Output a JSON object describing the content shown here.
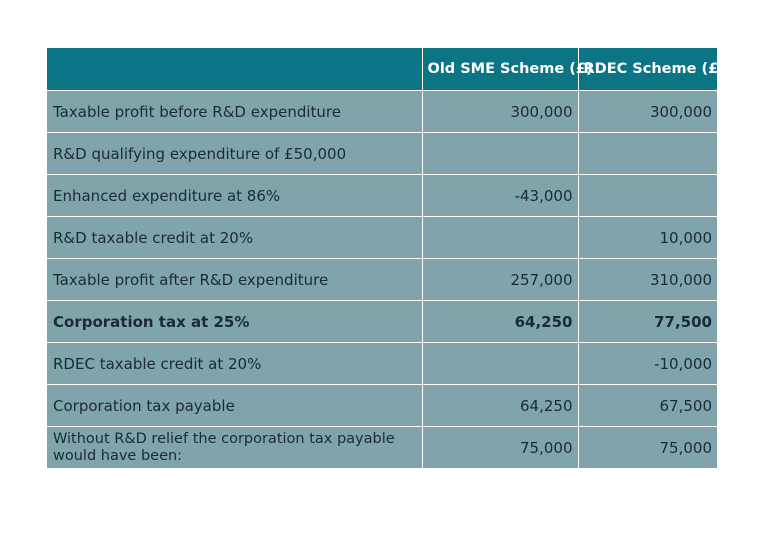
{
  "table": {
    "headers": [
      "",
      "Old SME Scheme (£)",
      "RDEC Scheme (£)"
    ],
    "rows": [
      {
        "label": "Taxable profit before R&D expenditure",
        "old": "300,000",
        "rdec": "300,000",
        "bold": false
      },
      {
        "label": "R&D qualifying expenditure of £50,000",
        "old": "",
        "rdec": "",
        "bold": false
      },
      {
        "label": "Enhanced expenditure at 86%",
        "old": "-43,000",
        "rdec": "",
        "bold": false
      },
      {
        "label": "R&D taxable credit at 20%",
        "old": "",
        "rdec": "10,000",
        "bold": false
      },
      {
        "label": "Taxable profit after R&D expenditure",
        "old": "257,000",
        "rdec": "310,000",
        "bold": false
      },
      {
        "label": "Corporation tax at 25%",
        "old": "64,250",
        "rdec": "77,500",
        "bold": true
      },
      {
        "label": "RDEC taxable credit at 20%",
        "old": "",
        "rdec": "-10,000",
        "bold": false
      },
      {
        "label": "Corporation tax payable",
        "old": "64,250",
        "rdec": "67,500",
        "bold": false
      },
      {
        "label": "Without R&D relief the corporation tax payable would have been:",
        "old": "75,000",
        "rdec": "75,000",
        "bold": false
      }
    ]
  },
  "colors": {
    "header_bg": "#0b7586",
    "row_bg": "#80a4ab",
    "border": "#ffffff"
  }
}
